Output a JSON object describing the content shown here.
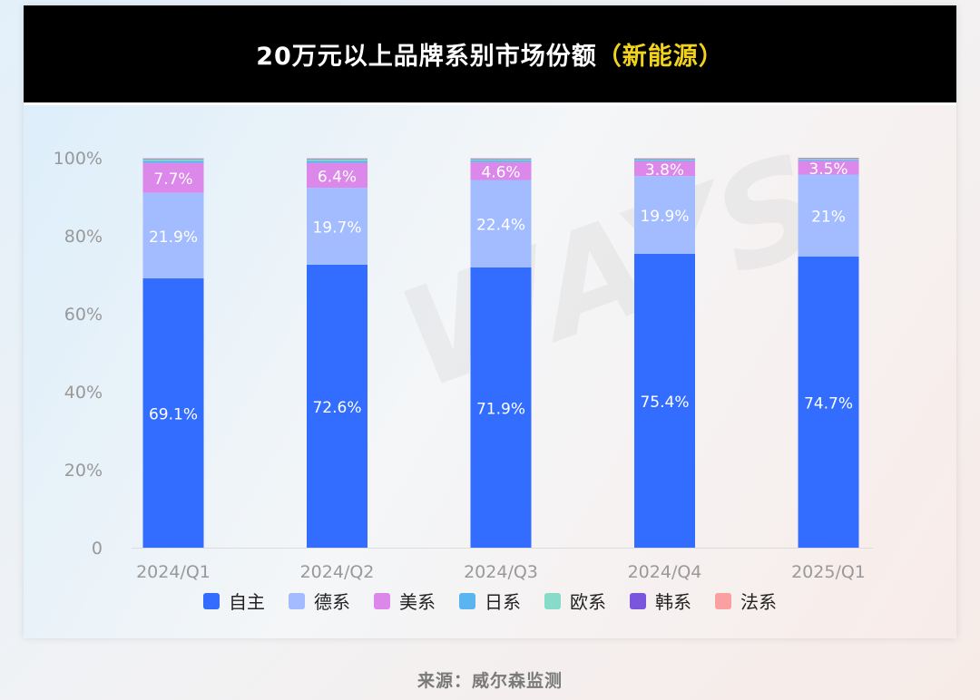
{
  "title": {
    "main": "20万元以上品牌系别市场份额",
    "highlight": "（新能源）"
  },
  "source": "来源：威尔森监测",
  "watermark": "WAYS",
  "colors": {
    "自主": "#336dff",
    "德系": "#a2bcff",
    "美系": "#dc87ea",
    "日系": "#5ab4f0",
    "欧系": "#86dcc8",
    "韩系": "#7a56dc",
    "法系": "#fba0a0"
  },
  "legend": [
    "自主",
    "德系",
    "美系",
    "日系",
    "欧系",
    "韩系",
    "法系"
  ],
  "chart_data": {
    "type": "bar",
    "stacked": true,
    "categories": [
      "2024/Q1",
      "2024/Q2",
      "2024/Q3",
      "2024/Q4",
      "2025/Q1"
    ],
    "series": [
      {
        "name": "自主",
        "values": [
          69.1,
          72.6,
          71.9,
          75.4,
          74.7
        ],
        "labels": [
          "69.1%",
          "72.6%",
          "71.9%",
          "75.4%",
          "74.7%"
        ]
      },
      {
        "name": "德系",
        "values": [
          21.9,
          19.7,
          22.4,
          19.9,
          21.0
        ],
        "labels": [
          "21.9%",
          "19.7%",
          "22.4%",
          "19.9%",
          "21%"
        ]
      },
      {
        "name": "美系",
        "values": [
          7.7,
          6.4,
          4.6,
          3.8,
          3.5
        ],
        "labels": [
          "7.7%",
          "6.4%",
          "4.6%",
          "3.8%",
          "3.5%"
        ]
      },
      {
        "name": "日系",
        "values": [
          0.5,
          0.5,
          0.4,
          0.3,
          0.3
        ]
      },
      {
        "name": "欧系",
        "values": [
          0.5,
          0.5,
          0.4,
          0.3,
          0.3
        ]
      },
      {
        "name": "韩系",
        "values": [
          0.1,
          0.1,
          0.1,
          0.1,
          0.1
        ]
      },
      {
        "name": "法系",
        "values": [
          0.1,
          0.1,
          0.1,
          0.1,
          0.1
        ]
      }
    ],
    "y_ticks": [
      "0",
      "20%",
      "40%",
      "60%",
      "80%",
      "100%"
    ],
    "ylim": [
      0,
      100
    ],
    "grid": false,
    "legend_position": "bottom"
  }
}
